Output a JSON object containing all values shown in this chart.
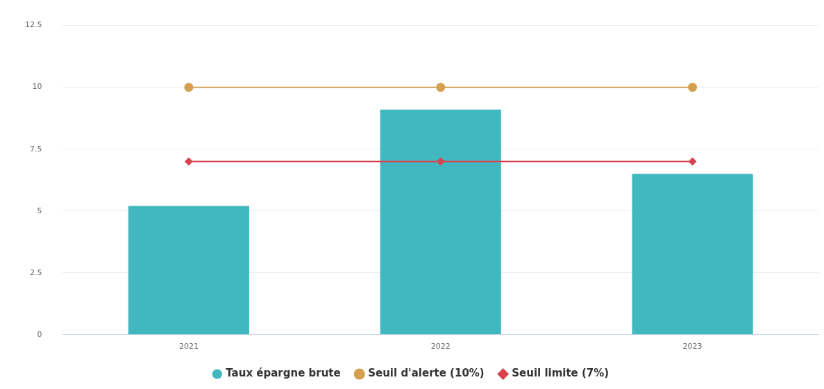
{
  "chart_data": {
    "type": "bar",
    "categories": [
      "2021",
      "2022",
      "2023"
    ],
    "series": [
      {
        "name": "Taux épargne brute",
        "color": "#41b8c0",
        "values": [
          5.2,
          9.1,
          6.5
        ]
      },
      {
        "name": "Seuil d'alerte (10%)",
        "type": "line",
        "color": "#d4a04f",
        "marker": "circle",
        "values": [
          10,
          10,
          10
        ]
      },
      {
        "name": "Seuil limite (7%)",
        "type": "line",
        "color": "#d9434e",
        "marker": "diamond",
        "values": [
          7,
          7,
          7
        ]
      }
    ],
    "ylim": [
      0,
      12.5
    ],
    "yticks": [
      0,
      2.5,
      5,
      7.5,
      10,
      12.5
    ],
    "grid": "y",
    "legend": "bottom"
  }
}
